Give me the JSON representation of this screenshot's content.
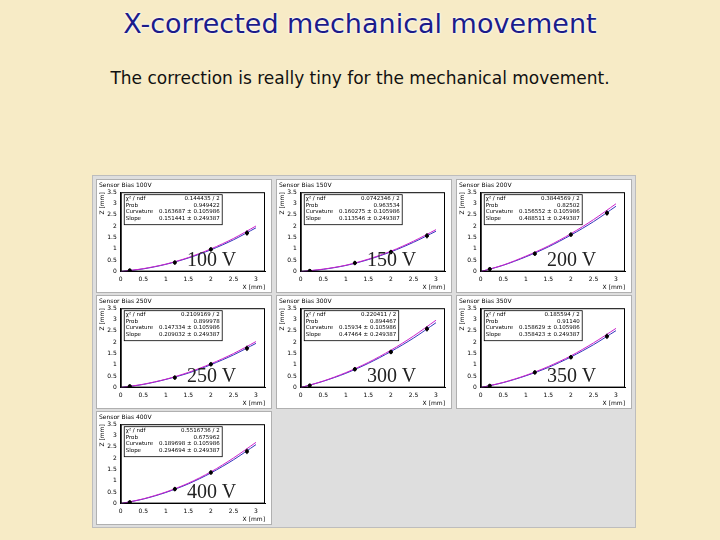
{
  "title": "X-corrected mechanical movement",
  "subtitle": "The correction is really tiny for the mechanical movement.",
  "chart_data": [
    {
      "type": "scatter",
      "title": "Sensor Bias 100V",
      "annotation": "100 V",
      "x_label": "X [mm]",
      "y_label": "Z [mm]",
      "xlim": [
        0,
        3.2
      ],
      "xticks": [
        0,
        0.5,
        1,
        1.5,
        2,
        2.5,
        3
      ],
      "ylim": [
        0,
        3.5
      ],
      "yticks": [
        0,
        0.5,
        1,
        1.5,
        2,
        2.5,
        3,
        3.5
      ],
      "grid": false,
      "stats": [
        {
          "label": "χ² / ndf",
          "value": "0.144435 / 2"
        },
        {
          "label": "Prob",
          "value": "0.949422"
        },
        {
          "label": "Curvature",
          "value": "0.163687 ± 0.105986"
        },
        {
          "label": "Slope",
          "value": "0.151441 ± 0.249387"
        }
      ],
      "series": [
        {
          "type": "scatter",
          "color": "#000000",
          "marker": "circle",
          "x": [
            0.2,
            1.2,
            2.0,
            2.8
          ],
          "values": [
            0.05,
            0.4,
            0.98,
            1.7
          ],
          "errors": [
            0.08,
            0.1,
            0.1,
            0.12
          ]
        },
        {
          "type": "line",
          "color": "#cc22cc",
          "line_style": "solid",
          "x": [
            0,
            0.5,
            1,
            1.5,
            2,
            2.5,
            3
          ],
          "values": [
            0,
            0.13,
            0.33,
            0.62,
            1.0,
            1.46,
            2.01
          ]
        },
        {
          "type": "line",
          "color": "#3333bb",
          "line_style": "solid",
          "x": [
            0,
            0.5,
            1,
            1.5,
            2,
            2.5,
            3
          ],
          "values": [
            0,
            0.12,
            0.32,
            0.6,
            0.96,
            1.4,
            1.93
          ]
        }
      ]
    },
    {
      "type": "scatter",
      "title": "Sensor Bias 150V",
      "annotation": "150 V",
      "x_label": "X [mm]",
      "y_label": "Z [mm]",
      "xlim": [
        0,
        3.2
      ],
      "xticks": [
        0,
        0.5,
        1,
        1.5,
        2,
        2.5,
        3
      ],
      "ylim": [
        0,
        3.5
      ],
      "yticks": [
        0,
        0.5,
        1,
        1.5,
        2,
        2.5,
        3,
        3.5
      ],
      "grid": false,
      "stats": [
        {
          "label": "χ² / ndf",
          "value": "0.0742346 / 2"
        },
        {
          "label": "Prob",
          "value": "0.963534"
        },
        {
          "label": "Curvature",
          "value": "0.160275 ± 0.105986"
        },
        {
          "label": "Slope",
          "value": "0.113546 ± 0.249387"
        }
      ],
      "series": [
        {
          "type": "scatter",
          "color": "#000000",
          "marker": "circle",
          "x": [
            0.2,
            1.2,
            2.0,
            2.8
          ],
          "values": [
            0.03,
            0.38,
            0.86,
            1.58
          ],
          "errors": [
            0.08,
            0.1,
            0.1,
            0.12
          ]
        },
        {
          "type": "line",
          "color": "#cc22cc",
          "line_style": "solid",
          "x": [
            0,
            0.5,
            1,
            1.5,
            2,
            2.5,
            3
          ],
          "values": [
            0,
            0.11,
            0.28,
            0.55,
            0.9,
            1.34,
            1.85
          ]
        },
        {
          "type": "line",
          "color": "#3333bb",
          "line_style": "solid",
          "x": [
            0,
            0.5,
            1,
            1.5,
            2,
            2.5,
            3
          ],
          "values": [
            0,
            0.1,
            0.27,
            0.53,
            0.87,
            1.29,
            1.78
          ]
        }
      ]
    },
    {
      "type": "scatter",
      "title": "Sensor Bias 200V",
      "annotation": "200 V",
      "x_label": "X [mm]",
      "y_label": "Z [mm]",
      "xlim": [
        0,
        3.2
      ],
      "xticks": [
        0,
        0.5,
        1,
        1.5,
        2,
        2.5,
        3
      ],
      "ylim": [
        0,
        3.5
      ],
      "yticks": [
        0,
        0.5,
        1,
        1.5,
        2,
        2.5,
        3,
        3.5
      ],
      "grid": false,
      "stats": [
        {
          "label": "χ² / ndf",
          "value": "0.3844569 / 2"
        },
        {
          "label": "Prob",
          "value": "0.82502"
        },
        {
          "label": "Curvature",
          "value": "0.156552 ± 0.105986"
        },
        {
          "label": "Slope",
          "value": "0.488511 ± 0.249387"
        }
      ],
      "series": [
        {
          "type": "scatter",
          "color": "#000000",
          "marker": "circle",
          "x": [
            0.2,
            1.2,
            2.0,
            2.8
          ],
          "values": [
            0.11,
            0.79,
            1.63,
            2.58
          ],
          "errors": [
            0.08,
            0.1,
            0.1,
            0.12
          ]
        },
        {
          "type": "line",
          "color": "#cc22cc",
          "line_style": "solid",
          "x": [
            0,
            0.5,
            1,
            1.5,
            2,
            2.5,
            3
          ],
          "values": [
            0,
            0.29,
            0.68,
            1.13,
            1.67,
            2.29,
            2.99
          ]
        },
        {
          "type": "line",
          "color": "#3333bb",
          "line_style": "solid",
          "x": [
            0,
            0.5,
            1,
            1.5,
            2,
            2.5,
            3
          ],
          "values": [
            0,
            0.28,
            0.65,
            1.09,
            1.61,
            2.2,
            2.88
          ]
        }
      ]
    },
    {
      "type": "scatter",
      "title": "Sensor Bias 250V",
      "annotation": "250 V",
      "x_label": "X [mm]",
      "y_label": "Z [mm]",
      "xlim": [
        0,
        3.2
      ],
      "xticks": [
        0,
        0.5,
        1,
        1.5,
        2,
        2.5,
        3
      ],
      "ylim": [
        0,
        3.5
      ],
      "yticks": [
        0,
        0.5,
        1,
        1.5,
        2,
        2.5,
        3,
        3.5
      ],
      "grid": false,
      "stats": [
        {
          "label": "χ² / ndf",
          "value": "0.2109169 / 2"
        },
        {
          "label": "Prob",
          "value": "0.899978"
        },
        {
          "label": "Curvature",
          "value": "0.147334 ± 0.105986"
        },
        {
          "label": "Slope",
          "value": "0.209032 ± 0.249387"
        }
      ],
      "series": [
        {
          "type": "scatter",
          "color": "#000000",
          "marker": "circle",
          "x": [
            0.2,
            1.2,
            2.0,
            2.8
          ],
          "values": [
            0.06,
            0.44,
            1.03,
            1.73
          ],
          "errors": [
            0.08,
            0.1,
            0.1,
            0.12
          ]
        },
        {
          "type": "line",
          "color": "#cc22cc",
          "line_style": "solid",
          "x": [
            0,
            0.5,
            1,
            1.5,
            2,
            2.5,
            3
          ],
          "values": [
            0,
            0.15,
            0.37,
            0.67,
            1.05,
            1.5,
            2.03
          ]
        },
        {
          "type": "line",
          "color": "#3333bb",
          "line_style": "solid",
          "x": [
            0,
            0.5,
            1,
            1.5,
            2,
            2.5,
            3
          ],
          "values": [
            0,
            0.14,
            0.36,
            0.64,
            1.01,
            1.44,
            1.95
          ]
        }
      ]
    },
    {
      "type": "scatter",
      "title": "Sensor Bias 300V",
      "annotation": "300 V",
      "x_label": "X [mm]",
      "y_label": "Z [mm]",
      "xlim": [
        0,
        3.2
      ],
      "xticks": [
        0,
        0.5,
        1,
        1.5,
        2,
        2.5,
        3
      ],
      "ylim": [
        0,
        3.5
      ],
      "yticks": [
        0,
        0.5,
        1,
        1.5,
        2,
        2.5,
        3,
        3.5
      ],
      "grid": false,
      "stats": [
        {
          "label": "χ² / ndf",
          "value": "0.220411 / 2"
        },
        {
          "label": "Prob",
          "value": "0.894467"
        },
        {
          "label": "Curvature",
          "value": "0.15934 ± 0.105986"
        },
        {
          "label": "Slope",
          "value": "0.47464 ± 0.249387"
        }
      ],
      "series": [
        {
          "type": "scatter",
          "color": "#000000",
          "marker": "circle",
          "x": [
            0.2,
            1.2,
            2.0,
            2.8
          ],
          "values": [
            0.09,
            0.81,
            1.57,
            2.59
          ],
          "errors": [
            0.08,
            0.1,
            0.1,
            0.12
          ]
        },
        {
          "type": "line",
          "color": "#cc22cc",
          "line_style": "solid",
          "x": [
            0,
            0.5,
            1,
            1.5,
            2,
            2.5,
            3
          ],
          "values": [
            0,
            0.29,
            0.66,
            1.11,
            1.65,
            2.27,
            2.97
          ]
        },
        {
          "type": "line",
          "color": "#3333bb",
          "line_style": "solid",
          "x": [
            0,
            0.5,
            1,
            1.5,
            2,
            2.5,
            3
          ],
          "values": [
            0,
            0.28,
            0.63,
            1.07,
            1.59,
            2.18,
            2.86
          ]
        }
      ]
    },
    {
      "type": "scatter",
      "title": "Sensor Bias 350V",
      "annotation": "350 V",
      "x_label": "X [mm]",
      "y_label": "Z [mm]",
      "xlim": [
        0,
        3.2
      ],
      "xticks": [
        0,
        0.5,
        1,
        1.5,
        2,
        2.5,
        3
      ],
      "ylim": [
        0,
        3.5
      ],
      "yticks": [
        0,
        0.5,
        1,
        1.5,
        2,
        2.5,
        3,
        3.5
      ],
      "grid": false,
      "stats": [
        {
          "label": "χ² / ndf",
          "value": "0.185594 / 2"
        },
        {
          "label": "Prob",
          "value": "0.91140"
        },
        {
          "label": "Curvature",
          "value": "0.158629 ± 0.105986"
        },
        {
          "label": "Slope",
          "value": "0.358423 ± 0.249387"
        }
      ],
      "series": [
        {
          "type": "scatter",
          "color": "#000000",
          "marker": "circle",
          "x": [
            0.2,
            1.2,
            2.0,
            2.8
          ],
          "values": [
            0.08,
            0.67,
            1.34,
            2.26
          ],
          "errors": [
            0.08,
            0.1,
            0.1,
            0.12
          ]
        },
        {
          "type": "line",
          "color": "#cc22cc",
          "line_style": "solid",
          "x": [
            0,
            0.5,
            1,
            1.5,
            2,
            2.5,
            3
          ],
          "values": [
            0,
            0.23,
            0.54,
            0.93,
            1.4,
            1.97,
            2.61
          ]
        },
        {
          "type": "line",
          "color": "#3333bb",
          "line_style": "solid",
          "x": [
            0,
            0.5,
            1,
            1.5,
            2,
            2.5,
            3
          ],
          "values": [
            0,
            0.22,
            0.52,
            0.89,
            1.35,
            1.89,
            2.51
          ]
        }
      ]
    },
    {
      "type": "scatter",
      "title": "Sensor Bias 400V",
      "annotation": "400 V",
      "x_label": "X [mm]",
      "y_label": "Z [mm]",
      "xlim": [
        0,
        3.2
      ],
      "xticks": [
        0,
        0.5,
        1,
        1.5,
        2,
        2.5,
        3
      ],
      "ylim": [
        0,
        3.5
      ],
      "yticks": [
        0,
        0.5,
        1,
        1.5,
        2,
        2.5,
        3,
        3.5
      ],
      "grid": false,
      "stats": [
        {
          "label": "χ² / ndf",
          "value": "0.5516736 / 2"
        },
        {
          "label": "Prob",
          "value": "0.675962"
        },
        {
          "label": "Curvature",
          "value": "0.189698 ± 0.105986"
        },
        {
          "label": "Slope",
          "value": "0.294694 ± 0.249387"
        }
      ],
      "series": [
        {
          "type": "scatter",
          "color": "#000000",
          "marker": "circle",
          "x": [
            0.2,
            1.2,
            2.0,
            2.8
          ],
          "values": [
            0.06,
            0.64,
            1.37,
            2.3
          ],
          "errors": [
            0.08,
            0.1,
            0.1,
            0.12
          ]
        },
        {
          "type": "line",
          "color": "#cc22cc",
          "line_style": "solid",
          "x": [
            0,
            0.5,
            1,
            1.5,
            2,
            2.5,
            3
          ],
          "values": [
            0,
            0.21,
            0.51,
            0.9,
            1.4,
            2.01,
            2.7
          ]
        },
        {
          "type": "line",
          "color": "#3333bb",
          "line_style": "solid",
          "x": [
            0,
            0.5,
            1,
            1.5,
            2,
            2.5,
            3
          ],
          "values": [
            0,
            0.2,
            0.49,
            0.87,
            1.35,
            1.93,
            2.6
          ]
        }
      ]
    }
  ]
}
